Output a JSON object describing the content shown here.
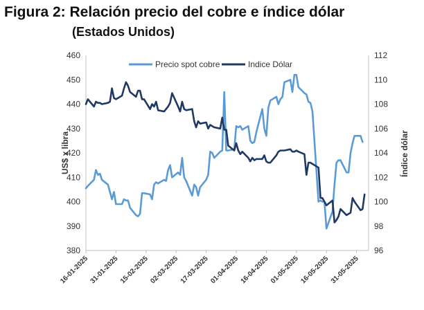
{
  "title": "Figura 2: Relación precio del cobre e índice dólar",
  "subtitle": "(Estados Unidos)",
  "chart_data": {
    "type": "line",
    "ylabel": "US$ x libra",
    "y2label": "Índice dólar",
    "ylim": [
      380,
      460
    ],
    "y2lim": [
      96,
      112
    ],
    "yticks": [
      380,
      390,
      400,
      410,
      420,
      430,
      440,
      450,
      460
    ],
    "y2ticks": [
      96,
      98,
      100,
      102,
      104,
      106,
      108,
      110,
      112
    ],
    "xlim": [
      "2025-01-16",
      "2025-06-06"
    ],
    "xticks": [
      "2025-01-16",
      "2025-01-31",
      "2025-02-15",
      "2025-03-02",
      "2025-03-17",
      "2025-04-01",
      "2025-04-16",
      "2025-05-01",
      "2025-05-16",
      "2025-05-31"
    ],
    "xticklabels": [
      "16-01-2025",
      "31-01-2025",
      "15-02-2025",
      "02-03-2025",
      "17-03-2025",
      "01-04-2025",
      "16-04-2025",
      "01-05-2025",
      "16-05-2025",
      "31-05-2025"
    ],
    "grid": false,
    "legend": "top",
    "series": [
      {
        "name": "Precio spot cobre",
        "axis": "left",
        "color": "#5b9bd5",
        "points": [
          [
            "2025-01-16",
            405.5
          ],
          [
            "2025-01-17",
            406.5
          ],
          [
            "2025-01-20",
            409
          ],
          [
            "2025-01-21",
            413
          ],
          [
            "2025-01-22",
            411
          ],
          [
            "2025-01-23",
            411.5
          ],
          [
            "2025-01-24",
            409
          ],
          [
            "2025-01-27",
            407
          ],
          [
            "2025-01-28",
            404
          ],
          [
            "2025-01-29",
            401
          ],
          [
            "2025-01-30",
            404
          ],
          [
            "2025-01-31",
            399
          ],
          [
            "2025-02-03",
            399
          ],
          [
            "2025-02-04",
            401
          ],
          [
            "2025-02-05",
            400.5
          ],
          [
            "2025-02-06",
            400.5
          ],
          [
            "2025-02-07",
            397.5
          ],
          [
            "2025-02-10",
            394.5
          ],
          [
            "2025-02-11",
            394
          ],
          [
            "2025-02-12",
            395
          ],
          [
            "2025-02-13",
            403.5
          ],
          [
            "2025-02-14",
            403.5
          ],
          [
            "2025-02-17",
            403
          ],
          [
            "2025-02-18",
            401
          ],
          [
            "2025-02-19",
            407
          ],
          [
            "2025-02-20",
            408
          ],
          [
            "2025-02-21",
            407.5
          ],
          [
            "2025-02-24",
            409
          ],
          [
            "2025-02-25",
            408.5
          ],
          [
            "2025-02-26",
            413
          ],
          [
            "2025-02-27",
            415
          ],
          [
            "2025-02-28",
            410
          ],
          [
            "2025-03-03",
            412
          ],
          [
            "2025-03-04",
            411
          ],
          [
            "2025-03-05",
            418
          ],
          [
            "2025-03-06",
            410
          ],
          [
            "2025-03-07",
            408.5
          ],
          [
            "2025-03-10",
            402.5
          ],
          [
            "2025-03-11",
            407
          ],
          [
            "2025-03-12",
            406
          ],
          [
            "2025-03-13",
            402.5
          ],
          [
            "2025-03-14",
            406
          ],
          [
            "2025-03-17",
            409
          ],
          [
            "2025-03-18",
            411
          ],
          [
            "2025-03-19",
            420.5
          ],
          [
            "2025-03-20",
            420
          ],
          [
            "2025-03-21",
            418
          ],
          [
            "2025-03-24",
            420.5
          ],
          [
            "2025-03-25",
            421
          ],
          [
            "2025-03-26",
            445
          ],
          [
            "2025-03-27",
            421
          ],
          [
            "2025-03-28",
            421
          ],
          [
            "2025-03-31",
            421.5
          ],
          [
            "2025-04-01",
            431
          ],
          [
            "2025-04-02",
            430.5
          ],
          [
            "2025-04-03",
            431
          ],
          [
            "2025-04-04",
            429.5
          ],
          [
            "2025-04-07",
            431
          ],
          [
            "2025-04-08",
            425
          ],
          [
            "2025-04-09",
            424
          ],
          [
            "2025-04-10",
            424.5
          ],
          [
            "2025-04-11",
            428.5
          ],
          [
            "2025-04-14",
            438
          ],
          [
            "2025-04-15",
            430
          ],
          [
            "2025-04-16",
            427
          ],
          [
            "2025-04-17",
            438.5
          ],
          [
            "2025-04-18",
            441.5
          ],
          [
            "2025-04-21",
            443
          ],
          [
            "2025-04-22",
            440
          ],
          [
            "2025-04-23",
            442
          ],
          [
            "2025-04-24",
            443
          ],
          [
            "2025-04-25",
            449
          ],
          [
            "2025-04-28",
            450
          ],
          [
            "2025-04-29",
            445
          ],
          [
            "2025-04-30",
            452
          ],
          [
            "2025-05-01",
            452
          ],
          [
            "2025-05-02",
            447
          ],
          [
            "2025-05-05",
            444.5
          ],
          [
            "2025-05-06",
            444
          ],
          [
            "2025-05-07",
            441
          ],
          [
            "2025-05-08",
            440.5
          ],
          [
            "2025-05-09",
            437
          ],
          [
            "2025-05-12",
            400
          ],
          [
            "2025-05-13",
            400.5
          ],
          [
            "2025-05-14",
            400
          ],
          [
            "2025-05-15",
            400
          ],
          [
            "2025-05-16",
            389
          ],
          [
            "2025-05-19",
            396
          ],
          [
            "2025-05-20",
            407
          ],
          [
            "2025-05-21",
            416
          ],
          [
            "2025-05-22",
            417
          ],
          [
            "2025-05-23",
            417
          ],
          [
            "2025-05-26",
            412
          ],
          [
            "2025-05-27",
            412
          ],
          [
            "2025-05-28",
            420
          ],
          [
            "2025-05-29",
            424
          ],
          [
            "2025-05-30",
            427
          ],
          [
            "2025-06-02",
            427
          ],
          [
            "2025-06-03",
            424.5
          ]
        ]
      },
      {
        "name": "Indice Dólar",
        "axis": "right",
        "color": "#1f3864",
        "points": [
          [
            "2025-01-16",
            108
          ],
          [
            "2025-01-17",
            108.4
          ],
          [
            "2025-01-20",
            107.8
          ],
          [
            "2025-01-21",
            108.2
          ],
          [
            "2025-01-22",
            108.1
          ],
          [
            "2025-01-23",
            108.1
          ],
          [
            "2025-01-24",
            108
          ],
          [
            "2025-01-27",
            108.1
          ],
          [
            "2025-01-28",
            108.2
          ],
          [
            "2025-01-29",
            109.3
          ],
          [
            "2025-01-30",
            108.5
          ],
          [
            "2025-01-31",
            108.4
          ],
          [
            "2025-02-03",
            108.7
          ],
          [
            "2025-02-04",
            109.3
          ],
          [
            "2025-02-05",
            109.8
          ],
          [
            "2025-02-06",
            109.5
          ],
          [
            "2025-02-07",
            109
          ],
          [
            "2025-02-10",
            108.6
          ],
          [
            "2025-02-11",
            109.1
          ],
          [
            "2025-02-12",
            109.1
          ],
          [
            "2025-02-13",
            108.4
          ],
          [
            "2025-02-14",
            108.4
          ],
          [
            "2025-02-17",
            107.6
          ],
          [
            "2025-02-18",
            108
          ],
          [
            "2025-02-19",
            107.8
          ],
          [
            "2025-02-20",
            108.2
          ],
          [
            "2025-02-21",
            107.5
          ],
          [
            "2025-02-24",
            107.4
          ],
          [
            "2025-02-25",
            107.6
          ],
          [
            "2025-02-26",
            107.8
          ],
          [
            "2025-02-27",
            108.1
          ],
          [
            "2025-02-28",
            108.9
          ],
          [
            "2025-03-03",
            107.8
          ],
          [
            "2025-03-04",
            107.4
          ],
          [
            "2025-03-05",
            108.2
          ],
          [
            "2025-03-06",
            107.6
          ],
          [
            "2025-03-07",
            107.5
          ],
          [
            "2025-03-10",
            107.6
          ],
          [
            "2025-03-11",
            106.6
          ],
          [
            "2025-03-12",
            106.1
          ],
          [
            "2025-03-13",
            106.6
          ],
          [
            "2025-03-14",
            106.4
          ],
          [
            "2025-03-17",
            106.5
          ],
          [
            "2025-03-18",
            106
          ],
          [
            "2025-03-19",
            106.3
          ],
          [
            "2025-03-20",
            106.2
          ],
          [
            "2025-03-21",
            106.1
          ],
          [
            "2025-03-24",
            106
          ],
          [
            "2025-03-25",
            106.9
          ],
          [
            "2025-03-26",
            105.9
          ],
          [
            "2025-03-27",
            105.9
          ],
          [
            "2025-03-28",
            104.6
          ],
          [
            "2025-03-31",
            104.2
          ],
          [
            "2025-04-01",
            104.8
          ],
          [
            "2025-04-02",
            104.2
          ],
          [
            "2025-04-03",
            103.9
          ],
          [
            "2025-04-04",
            104.1
          ],
          [
            "2025-04-07",
            103.6
          ],
          [
            "2025-04-08",
            103.3
          ],
          [
            "2025-04-09",
            103.6
          ],
          [
            "2025-04-10",
            103.4
          ],
          [
            "2025-04-11",
            103.5
          ],
          [
            "2025-04-14",
            103.5
          ],
          [
            "2025-04-15",
            103.8
          ],
          [
            "2025-04-16",
            103.3
          ],
          [
            "2025-04-17",
            103.2
          ],
          [
            "2025-04-18",
            103.2
          ],
          [
            "2025-04-21",
            103.8
          ],
          [
            "2025-04-22",
            104.1
          ],
          [
            "2025-04-23",
            104.2
          ],
          [
            "2025-04-24",
            104.2
          ],
          [
            "2025-04-25",
            104.2
          ],
          [
            "2025-04-28",
            104.3
          ],
          [
            "2025-04-29",
            104.1
          ],
          [
            "2025-04-30",
            104.1
          ],
          [
            "2025-05-01",
            104.2
          ],
          [
            "2025-05-02",
            104.1
          ],
          [
            "2025-05-05",
            103.9
          ],
          [
            "2025-05-06",
            102.2
          ],
          [
            "2025-05-07",
            103.2
          ],
          [
            "2025-05-08",
            103.2
          ],
          [
            "2025-05-09",
            103.1
          ],
          [
            "2025-05-12",
            102.8
          ],
          [
            "2025-05-13",
            100.3
          ],
          [
            "2025-05-14",
            100.3
          ],
          [
            "2025-05-15",
            100
          ],
          [
            "2025-05-16",
            99.7
          ],
          [
            "2025-05-19",
            100.1
          ],
          [
            "2025-05-20",
            98.3
          ],
          [
            "2025-05-21",
            98.5
          ],
          [
            "2025-05-22",
            98.8
          ],
          [
            "2025-05-23",
            99.4
          ],
          [
            "2025-05-26",
            98.9
          ],
          [
            "2025-05-27",
            99
          ],
          [
            "2025-05-28",
            99.1
          ],
          [
            "2025-05-29",
            100.3
          ],
          [
            "2025-05-30",
            100
          ],
          [
            "2025-06-02",
            99.3
          ],
          [
            "2025-06-03",
            99.4
          ],
          [
            "2025-06-04",
            100.6
          ]
        ]
      }
    ]
  }
}
